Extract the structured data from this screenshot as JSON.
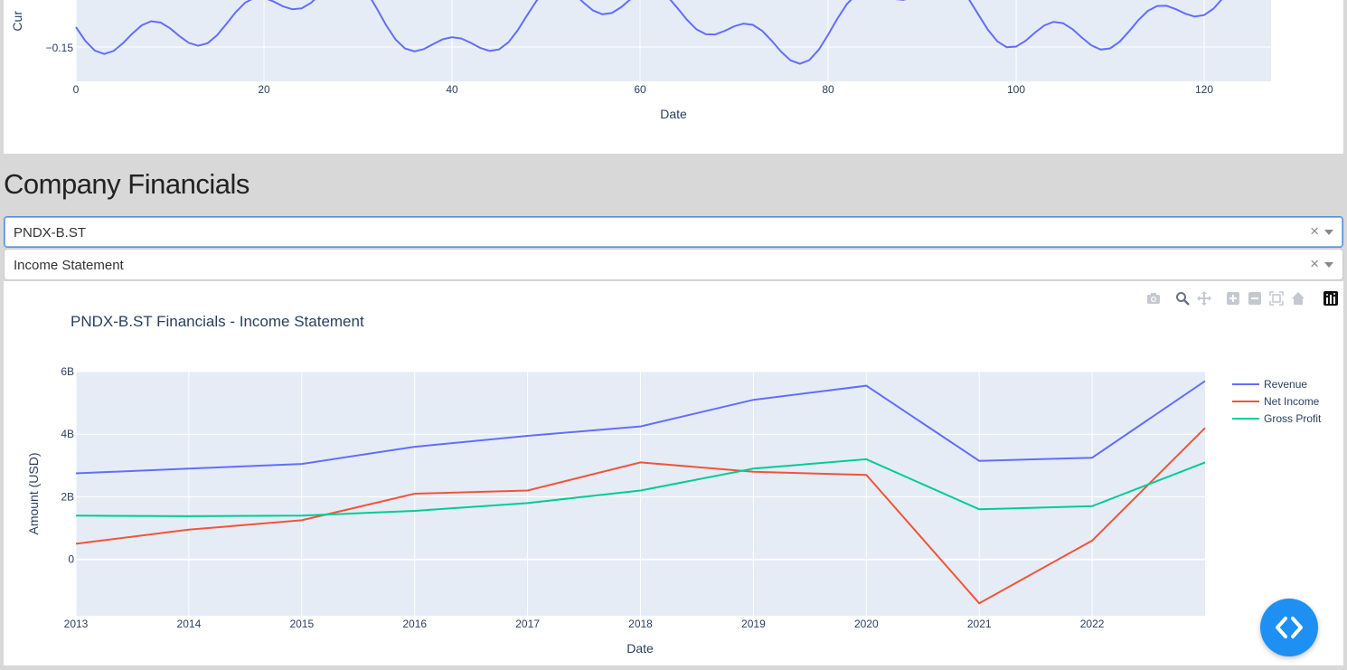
{
  "top_chart": {
    "y_label": "Cur",
    "y_tick": "−0.15",
    "x_label": "Date",
    "x_ticks": [
      "0",
      "20",
      "40",
      "60",
      "80",
      "100",
      "120"
    ],
    "line_color": "#636efa"
  },
  "section": {
    "title": "Company Financials"
  },
  "ticker_select": {
    "value": "PNDX-B.ST",
    "clear": "×"
  },
  "statement_select": {
    "value": "Income Statement",
    "clear": "×"
  },
  "modebar": {
    "icons": [
      "camera-icon",
      "zoom-icon",
      "pan-icon",
      "zoom-in-icon",
      "zoom-out-icon",
      "autoscale-icon",
      "reset-axes-icon",
      "plotly-logo-icon"
    ]
  },
  "chart_data": {
    "type": "line",
    "title": "PNDX-B.ST Financials - Income Statement",
    "xlabel": "Date",
    "ylabel": "Amount (USD)",
    "x": [
      2013,
      2014,
      2015,
      2016,
      2017,
      2018,
      2019,
      2020,
      2021,
      2022,
      2023
    ],
    "x_ticks": [
      "2013",
      "2014",
      "2015",
      "2016",
      "2017",
      "2018",
      "2019",
      "2020",
      "2021",
      "2022"
    ],
    "y_ticks": [
      {
        "v": 0,
        "label": "0"
      },
      {
        "v": 2,
        "label": "2B"
      },
      {
        "v": 4,
        "label": "4B"
      },
      {
        "v": 6,
        "label": "6B"
      }
    ],
    "xlim": [
      2013,
      2023
    ],
    "ylim": [
      -1.8,
      6.0
    ],
    "units": "billions",
    "grid": true,
    "legend": "top-right",
    "series": [
      {
        "name": "Revenue",
        "color": "#636efa",
        "values": [
          2.75,
          2.9,
          3.05,
          3.6,
          3.95,
          4.25,
          5.1,
          5.55,
          3.15,
          3.25,
          5.7
        ]
      },
      {
        "name": "Net Income",
        "color": "#ef553b",
        "values": [
          0.5,
          0.95,
          1.25,
          2.1,
          2.2,
          3.1,
          2.8,
          2.7,
          -1.4,
          0.6,
          4.2
        ]
      },
      {
        "name": "Gross Profit",
        "color": "#00cc96",
        "values": [
          1.4,
          1.38,
          1.4,
          1.55,
          1.8,
          2.2,
          2.9,
          3.2,
          1.6,
          1.7,
          3.1
        ]
      }
    ]
  },
  "fab": {
    "icon": "code-icon"
  }
}
